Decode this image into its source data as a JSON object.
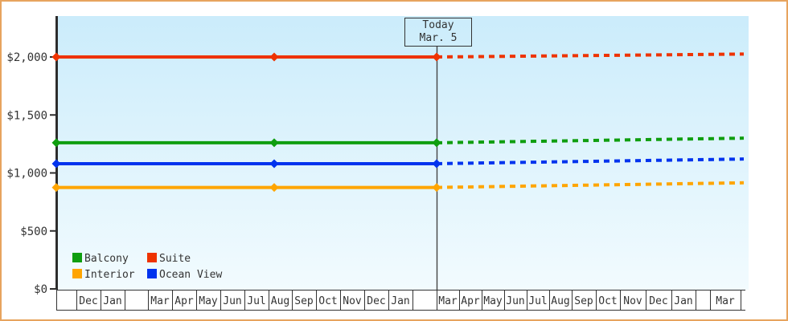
{
  "today_box": {
    "line1": "Today",
    "line2": "Mar. 5"
  },
  "chart_data": {
    "type": "line",
    "title": "",
    "description": "Cabin price history by category; solid lines are past prices, dotted lines are projected prices after today (Mar. 5)",
    "x_axis": {
      "month_labels": [
        "",
        "Dec",
        "Jan",
        "",
        "Mar",
        "Apr",
        "May",
        "Jun",
        "Jul",
        "Aug",
        "Sep",
        "Oct",
        "Nov",
        "Dec",
        "Jan",
        "",
        "Mar",
        "Apr",
        "May",
        "Jun",
        "Jul",
        "Aug",
        "Sep",
        "Oct",
        "Nov",
        "Dec",
        "Jan",
        "",
        "Mar",
        ""
      ]
    },
    "y_axis": {
      "tick_labels": [
        "$0",
        "$500",
        "$1,000",
        "$1,500",
        "$2,000"
      ],
      "tick_values": [
        0,
        500,
        1000,
        1500,
        2000
      ],
      "range": [
        0,
        2200
      ]
    },
    "today": {
      "label_line1": "Today",
      "label_line2": "Mar. 5"
    },
    "series": [
      {
        "name": "Balcony",
        "color": "#0f9e0f",
        "solid_value": 1260,
        "marker_points": [
          "chart-start",
          "Aug",
          "today (Mar 5)"
        ],
        "projected_value_at_right_edge": 1300
      },
      {
        "name": "Suite",
        "color": "#ee3300",
        "solid_value": 2000,
        "marker_points": [
          "chart-start",
          "Aug",
          "today (Mar 5)"
        ],
        "projected_value_at_right_edge": 2025
      },
      {
        "name": "Interior",
        "color": "#ffa500",
        "solid_value": 875,
        "marker_points": [
          "chart-start",
          "Aug",
          "today (Mar 5)"
        ],
        "projected_value_at_right_edge": 915
      },
      {
        "name": "Ocean View",
        "color": "#0033ee",
        "solid_value": 1080,
        "marker_points": [
          "chart-start",
          "Aug",
          "today (Mar 5)"
        ],
        "projected_value_at_right_edge": 1120
      }
    ],
    "legend": {
      "position": "bottom-left-inside",
      "grid": [
        [
          "Balcony",
          "Suite"
        ],
        [
          "Interior",
          "Ocean View"
        ]
      ]
    },
    "style": {
      "plot_bg_top": "#cbecfb",
      "plot_bg_bottom": "#f2fbfe",
      "frame_border": "#e7a45e",
      "axis_color": "#2d2d2d",
      "band_line_color": "#333333",
      "today_line_color": "#444444",
      "text_color": "#333333"
    }
  }
}
